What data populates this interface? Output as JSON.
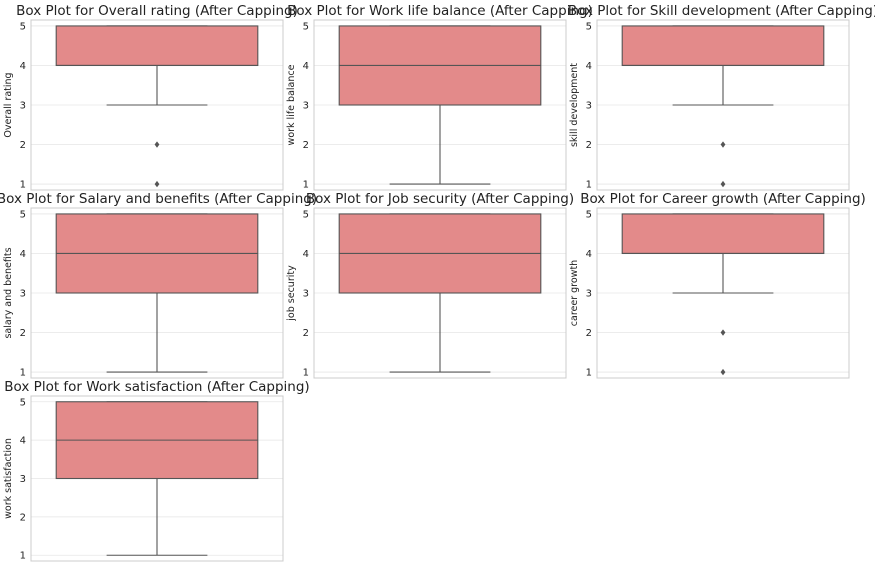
{
  "chart_data": [
    {
      "type": "box",
      "title": "Box Plot for Overall rating (After Capping)",
      "ylabel": "Overall rating",
      "yticks": [
        "1",
        "2",
        "3",
        "4",
        "5"
      ],
      "ylim": [
        0.85,
        5.15
      ],
      "whisker_low": 3,
      "q1": 4,
      "median": 4,
      "q3": 5,
      "whisker_high": 5,
      "outliers": [
        2,
        1
      ],
      "grid": true,
      "box_color": "#e38a8a"
    },
    {
      "type": "box",
      "title": "Box Plot for Work life balance (After Capping)",
      "ylabel": "work life balance",
      "yticks": [
        "1",
        "2",
        "3",
        "4",
        "5"
      ],
      "ylim": [
        0.85,
        5.15
      ],
      "whisker_low": 1,
      "q1": 3,
      "median": 4,
      "q3": 5,
      "whisker_high": 5,
      "outliers": [],
      "grid": true,
      "box_color": "#e38a8a"
    },
    {
      "type": "box",
      "title": "Box Plot for Skill development (After Capping)",
      "ylabel": "skill development",
      "yticks": [
        "1",
        "2",
        "3",
        "4",
        "5"
      ],
      "ylim": [
        0.85,
        5.15
      ],
      "whisker_low": 3,
      "q1": 4,
      "median": 4,
      "q3": 5,
      "whisker_high": 5,
      "outliers": [
        2,
        1
      ],
      "grid": true,
      "box_color": "#e38a8a"
    },
    {
      "type": "box",
      "title": "Box Plot for Salary and benefits (After Capping)",
      "ylabel": "salary and benefits",
      "yticks": [
        "1",
        "2",
        "3",
        "4",
        "5"
      ],
      "ylim": [
        0.85,
        5.15
      ],
      "whisker_low": 1,
      "q1": 3,
      "median": 4,
      "q3": 5,
      "whisker_high": 5,
      "outliers": [],
      "grid": true,
      "box_color": "#e38a8a"
    },
    {
      "type": "box",
      "title": "Box Plot for Job security (After Capping)",
      "ylabel": "job security",
      "yticks": [
        "1",
        "2",
        "3",
        "4",
        "5"
      ],
      "ylim": [
        0.85,
        5.15
      ],
      "whisker_low": 1,
      "q1": 3,
      "median": 4,
      "q3": 5,
      "whisker_high": 5,
      "outliers": [],
      "grid": true,
      "box_color": "#e38a8a"
    },
    {
      "type": "box",
      "title": "Box Plot for Career growth (After Capping)",
      "ylabel": "career growth",
      "yticks": [
        "1",
        "2",
        "3",
        "4",
        "5"
      ],
      "ylim": [
        0.85,
        5.15
      ],
      "whisker_low": 3,
      "q1": 4,
      "median": 4,
      "q3": 5,
      "whisker_high": 5,
      "outliers": [
        2,
        1
      ],
      "grid": true,
      "box_color": "#e38a8a"
    },
    {
      "type": "box",
      "title": "Box Plot for Work satisfaction (After Capping)",
      "ylabel": "work satisfaction",
      "yticks": [
        "1",
        "2",
        "3",
        "4",
        "5"
      ],
      "ylim": [
        0.85,
        5.15
      ],
      "whisker_low": 1,
      "q1": 3,
      "median": 4,
      "q3": 5,
      "whisker_high": 5,
      "outliers": [],
      "grid": true,
      "box_color": "#e38a8a"
    }
  ]
}
